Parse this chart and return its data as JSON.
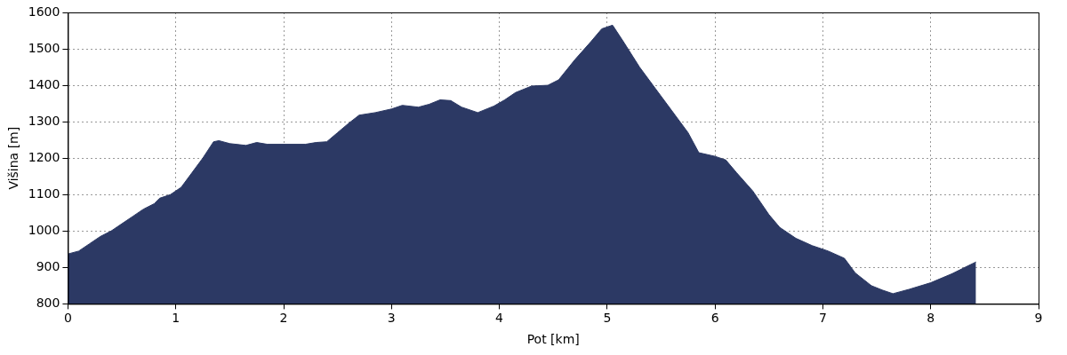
{
  "chart_data": {
    "type": "area",
    "xlabel": "Pot [km]",
    "ylabel": "Višina [m]",
    "x": [
      0,
      0.1,
      0.2,
      0.3,
      0.4,
      0.5,
      0.6,
      0.7,
      0.8,
      0.85,
      0.95,
      1.05,
      1.15,
      1.25,
      1.35,
      1.4,
      1.5,
      1.65,
      1.75,
      1.85,
      2.0,
      2.2,
      2.3,
      2.4,
      2.5,
      2.6,
      2.7,
      2.85,
      3.0,
      3.1,
      3.25,
      3.35,
      3.45,
      3.55,
      3.65,
      3.8,
      3.95,
      4.05,
      4.15,
      4.3,
      4.45,
      4.55,
      4.7,
      4.85,
      4.95,
      5.05,
      5.15,
      5.3,
      5.45,
      5.6,
      5.75,
      5.85,
      6.0,
      6.1,
      6.2,
      6.35,
      6.5,
      6.6,
      6.75,
      6.9,
      7.05,
      7.2,
      7.3,
      7.45,
      7.55,
      7.65,
      7.8,
      8.0,
      8.2,
      8.35,
      8.42
    ],
    "series": [
      {
        "color": "#2c3964",
        "values": [
          937,
          945,
          965,
          985,
          1000,
          1020,
          1040,
          1060,
          1075,
          1090,
          1100,
          1120,
          1160,
          1200,
          1245,
          1248,
          1240,
          1235,
          1243,
          1238,
          1238,
          1238,
          1243,
          1245,
          1270,
          1295,
          1318,
          1325,
          1335,
          1345,
          1340,
          1348,
          1360,
          1358,
          1340,
          1325,
          1343,
          1360,
          1380,
          1398,
          1400,
          1415,
          1470,
          1520,
          1555,
          1565,
          1520,
          1450,
          1390,
          1330,
          1270,
          1215,
          1205,
          1195,
          1160,
          1110,
          1045,
          1010,
          980,
          960,
          945,
          925,
          885,
          850,
          838,
          828,
          840,
          858,
          883,
          905,
          915
        ]
      }
    ],
    "xlim": [
      0,
      9
    ],
    "xticks": [
      0,
      1,
      2,
      3,
      4,
      5,
      6,
      7,
      8,
      9
    ],
    "ylim": [
      800,
      1600
    ],
    "yticks": [
      800,
      900,
      1000,
      1100,
      1200,
      1300,
      1400,
      1500,
      1600
    ],
    "grid": true,
    "legend": false
  }
}
